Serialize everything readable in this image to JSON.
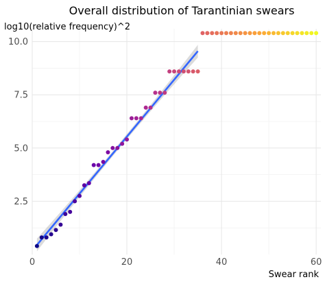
{
  "chart_data": {
    "type": "scatter",
    "title": "Overall distribution of Tarantinian swears",
    "xlabel": "Swear rank",
    "ylabel": "log10(relative frequency)^2",
    "xlim": [
      0,
      61
    ],
    "ylim": [
      0,
      10.6
    ],
    "xticks": [
      0,
      20,
      40,
      60
    ],
    "xtick_labels": [
      "0",
      "20",
      "40",
      "60"
    ],
    "yticks": [
      2.5,
      5.0,
      7.5,
      10.0
    ],
    "ytick_labels": [
      "2.5",
      "5.0",
      "7.5",
      "10.0"
    ],
    "grid": true,
    "legend": "none",
    "colormap": [
      "#0d0887",
      "#6a00a8",
      "#b12a90",
      "#e16462",
      "#fca636",
      "#f0f921"
    ],
    "trend_line": {
      "type": "linear",
      "color": "#3366ff",
      "band_color": "#999999",
      "x": [
        1,
        35
      ],
      "y": [
        0.45,
        9.55
      ]
    },
    "points": [
      {
        "x": 1,
        "y": 0.4
      },
      {
        "x": 2,
        "y": 0.8
      },
      {
        "x": 3,
        "y": 0.8
      },
      {
        "x": 4,
        "y": 0.95
      },
      {
        "x": 5,
        "y": 1.15
      },
      {
        "x": 6,
        "y": 1.4
      },
      {
        "x": 7,
        "y": 1.9
      },
      {
        "x": 8,
        "y": 2.0
      },
      {
        "x": 9,
        "y": 2.5
      },
      {
        "x": 10,
        "y": 2.75
      },
      {
        "x": 11,
        "y": 3.25
      },
      {
        "x": 12,
        "y": 3.35
      },
      {
        "x": 13,
        "y": 4.2
      },
      {
        "x": 14,
        "y": 4.2
      },
      {
        "x": 15,
        "y": 4.35
      },
      {
        "x": 16,
        "y": 4.8
      },
      {
        "x": 17,
        "y": 5.0
      },
      {
        "x": 18,
        "y": 5.0
      },
      {
        "x": 19,
        "y": 5.2
      },
      {
        "x": 20,
        "y": 5.4
      },
      {
        "x": 21,
        "y": 6.4
      },
      {
        "x": 22,
        "y": 6.4
      },
      {
        "x": 23,
        "y": 6.4
      },
      {
        "x": 24,
        "y": 6.9
      },
      {
        "x": 25,
        "y": 6.9
      },
      {
        "x": 26,
        "y": 7.6
      },
      {
        "x": 27,
        "y": 7.6
      },
      {
        "x": 28,
        "y": 7.6
      },
      {
        "x": 29,
        "y": 8.6
      },
      {
        "x": 30,
        "y": 8.6
      },
      {
        "x": 31,
        "y": 8.6
      },
      {
        "x": 32,
        "y": 8.6
      },
      {
        "x": 33,
        "y": 8.6
      },
      {
        "x": 34,
        "y": 8.6
      },
      {
        "x": 35,
        "y": 8.6
      },
      {
        "x": 36,
        "y": 10.4
      },
      {
        "x": 37,
        "y": 10.4
      },
      {
        "x": 38,
        "y": 10.4
      },
      {
        "x": 39,
        "y": 10.4
      },
      {
        "x": 40,
        "y": 10.4
      },
      {
        "x": 41,
        "y": 10.4
      },
      {
        "x": 42,
        "y": 10.4
      },
      {
        "x": 43,
        "y": 10.4
      },
      {
        "x": 44,
        "y": 10.4
      },
      {
        "x": 45,
        "y": 10.4
      },
      {
        "x": 46,
        "y": 10.4
      },
      {
        "x": 47,
        "y": 10.4
      },
      {
        "x": 48,
        "y": 10.4
      },
      {
        "x": 49,
        "y": 10.4
      },
      {
        "x": 50,
        "y": 10.4
      },
      {
        "x": 51,
        "y": 10.4
      },
      {
        "x": 52,
        "y": 10.4
      },
      {
        "x": 53,
        "y": 10.4
      },
      {
        "x": 54,
        "y": 10.4
      },
      {
        "x": 55,
        "y": 10.4
      },
      {
        "x": 56,
        "y": 10.4
      },
      {
        "x": 57,
        "y": 10.4
      },
      {
        "x": 58,
        "y": 10.4
      },
      {
        "x": 59,
        "y": 10.4
      },
      {
        "x": 60,
        "y": 10.4
      }
    ]
  }
}
